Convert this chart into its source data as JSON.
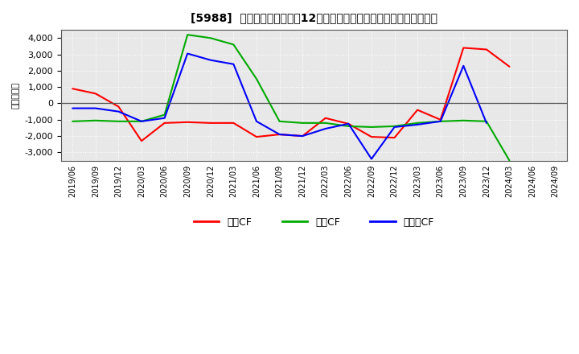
{
  "title": "[5988]  キャッシュフローの12か月移動合計の対前年同期増減額の推移",
  "ylabel": "（百万円）",
  "background_color": "#ffffff",
  "plot_bg_color": "#e8e8e8",
  "grid_color": "#ffffff",
  "x_labels": [
    "2019/06",
    "2019/09",
    "2019/12",
    "2020/03",
    "2020/06",
    "2020/09",
    "2020/12",
    "2021/03",
    "2021/06",
    "2021/09",
    "2021/12",
    "2022/03",
    "2022/06",
    "2022/09",
    "2022/12",
    "2023/03",
    "2023/06",
    "2023/09",
    "2023/12",
    "2024/03",
    "2024/06",
    "2024/09"
  ],
  "eigyo_values": [
    900,
    600,
    -200,
    -2300,
    -1200,
    -1150,
    -1200,
    -1200,
    -2050,
    -1900,
    -2000,
    -900,
    -1250,
    -2050,
    -2100,
    -400,
    -1000,
    3400,
    3300,
    2250,
    null,
    null
  ],
  "toshi_values": [
    -1100,
    -1050,
    -1100,
    -1100,
    -700,
    4200,
    4000,
    3600,
    1500,
    -1100,
    -1200,
    -1200,
    -1400,
    -1450,
    -1400,
    -1200,
    -1100,
    -1050,
    -1100,
    -3500,
    null,
    null
  ],
  "free_values": [
    -300,
    -300,
    -500,
    -1100,
    -900,
    3050,
    2650,
    2400,
    -1100,
    -1900,
    -2000,
    -1550,
    -1250,
    -3400,
    -1450,
    -1300,
    -1100,
    2300,
    -1200,
    null,
    null,
    null
  ],
  "eigyo_color": "#ff0000",
  "toshi_color": "#00aa00",
  "free_color": "#0000ff",
  "ylim": [
    -3500,
    4500
  ],
  "yticks": [
    -3000,
    -2000,
    -1000,
    0,
    1000,
    2000,
    3000,
    4000
  ],
  "legend_labels": [
    "営業CF",
    "投資CF",
    "フリーCF"
  ],
  "legend_colors": [
    "#ff0000",
    "#00aa00",
    "#0000ff"
  ]
}
